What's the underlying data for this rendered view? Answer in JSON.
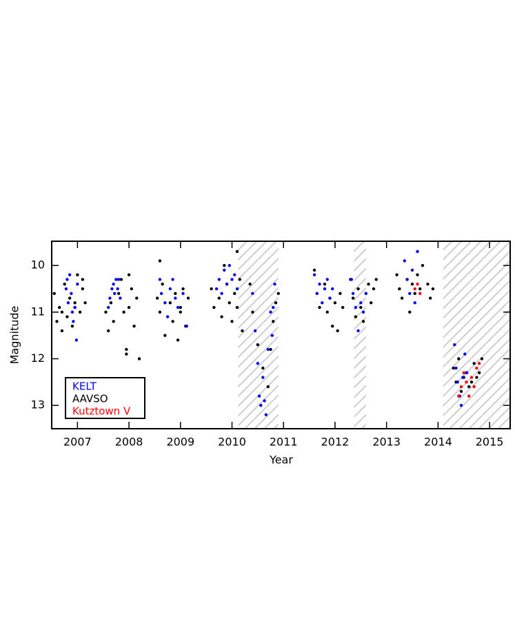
{
  "chart_data": {
    "type": "scatter",
    "xlabel": "Year",
    "ylabel": "Magnitude",
    "xlim": [
      2007.0,
      2015.9
    ],
    "ylim": [
      13.5,
      9.48
    ],
    "xticks": [
      {
        "value": 2007.5,
        "label": "2007"
      },
      {
        "value": 2008.5,
        "label": "2008"
      },
      {
        "value": 2009.5,
        "label": "2009"
      },
      {
        "value": 2010.5,
        "label": "2010"
      },
      {
        "value": 2011.5,
        "label": "2011"
      },
      {
        "value": 2012.5,
        "label": "2012"
      },
      {
        "value": 2013.5,
        "label": "2013"
      },
      {
        "value": 2014.5,
        "label": "2014"
      },
      {
        "value": 2015.5,
        "label": "2015"
      }
    ],
    "yticks": [
      10,
      11,
      12,
      13
    ],
    "shaded_regions": [
      [
        2010.62,
        2011.4
      ],
      [
        2012.87,
        2013.1
      ],
      [
        2014.6,
        2015.9
      ]
    ],
    "legend": "lower left",
    "series": [
      {
        "name": "KELT",
        "color": "#0000ff",
        "x": [
          2007.28,
          2007.3,
          2007.32,
          2007.35,
          2007.38,
          2007.4,
          2007.42,
          2007.45,
          2007.48,
          2007.5,
          2008.1,
          2008.13,
          2008.17,
          2008.2,
          2008.22,
          2008.25,
          2008.28,
          2008.3,
          2008.33,
          2009.1,
          2009.13,
          2009.2,
          2009.25,
          2009.3,
          2009.35,
          2009.4,
          2009.45,
          2009.55,
          2009.62,
          2010.2,
          2010.25,
          2010.3,
          2010.35,
          2010.4,
          2010.45,
          2010.5,
          2010.55,
          2010.6,
          2010.9,
          2010.95,
          2011.0,
          2011.03,
          2011.06,
          2011.1,
          2011.13,
          2011.16,
          2011.2,
          2011.25,
          2011.28,
          2011.3,
          2011.33,
          2012.1,
          2012.15,
          2012.2,
          2012.25,
          2012.3,
          2012.35,
          2012.4,
          2012.45,
          2012.82,
          2012.85,
          2012.9,
          2012.95,
          2013.0,
          2013.05,
          2013.1,
          2013.85,
          2013.9,
          2013.95,
          2014.0,
          2014.05,
          2014.1,
          2014.82,
          2014.85,
          2014.88,
          2014.92,
          2014.95,
          2014.98,
          2015.02,
          2015.06
        ],
        "values": [
          10.5,
          10.3,
          10.8,
          10.2,
          10.6,
          11.0,
          11.2,
          10.9,
          11.6,
          10.4,
          10.9,
          10.7,
          10.5,
          10.4,
          10.6,
          10.3,
          10.5,
          10.3,
          10.7,
          10.3,
          10.6,
          10.8,
          11.1,
          10.5,
          10.3,
          10.7,
          10.9,
          10.6,
          11.3,
          10.5,
          10.3,
          10.6,
          10.1,
          10.4,
          10.0,
          10.3,
          10.2,
          10.5,
          10.6,
          11.4,
          12.1,
          12.8,
          13.0,
          12.4,
          12.9,
          13.2,
          11.8,
          11.0,
          11.5,
          10.9,
          10.4,
          10.2,
          10.6,
          10.4,
          10.8,
          10.5,
          10.3,
          10.7,
          10.5,
          10.3,
          10.6,
          10.9,
          11.4,
          10.8,
          11.0,
          10.6,
          9.9,
          10.3,
          10.6,
          10.1,
          10.8,
          9.7,
          11.7,
          12.2,
          12.5,
          12.8,
          13.0,
          12.4,
          11.9,
          12.3
        ]
      },
      {
        "name": "AAVSO",
        "color": "#000000",
        "x": [
          2007.05,
          2007.1,
          2007.15,
          2007.2,
          2007.25,
          2007.3,
          2007.35,
          2007.4,
          2007.45,
          2007.5,
          2007.55,
          2007.6,
          2007.65,
          2007.2,
          2007.45,
          2007.6,
          2008.05,
          2008.1,
          2008.15,
          2008.2,
          2008.3,
          2008.35,
          2008.4,
          2008.45,
          2008.5,
          2008.55,
          2008.6,
          2008.65,
          2008.7,
          2008.45,
          2008.5,
          2009.05,
          2009.1,
          2009.15,
          2009.2,
          2009.3,
          2009.35,
          2009.4,
          2009.45,
          2009.5,
          2009.55,
          2009.6,
          2009.65,
          2009.1,
          2009.5,
          2010.1,
          2010.15,
          2010.25,
          2010.3,
          2010.4,
          2010.45,
          2010.5,
          2010.55,
          2010.6,
          2010.65,
          2010.7,
          2010.35,
          2010.6,
          2010.85,
          2010.9,
          2011.0,
          2011.1,
          2011.2,
          2011.25,
          2011.3,
          2011.35,
          2011.4,
          2012.1,
          2012.15,
          2012.2,
          2012.3,
          2012.35,
          2012.4,
          2012.45,
          2012.5,
          2012.55,
          2012.6,
          2012.65,
          2012.8,
          2012.85,
          2012.9,
          2012.95,
          2013.0,
          2013.05,
          2013.1,
          2013.15,
          2013.2,
          2013.25,
          2013.3,
          2013.7,
          2013.75,
          2013.8,
          2013.9,
          2013.95,
          2014.0,
          2014.05,
          2014.1,
          2014.15,
          2014.2,
          2014.3,
          2014.35,
          2014.4,
          2014.8,
          2014.85,
          2014.9,
          2014.95,
          2015.0,
          2015.05,
          2015.1,
          2015.15,
          2015.2,
          2015.25,
          2015.3,
          2015.35
        ],
        "values": [
          10.6,
          11.2,
          10.9,
          11.0,
          10.4,
          11.1,
          10.7,
          11.3,
          10.8,
          10.2,
          11.0,
          10.5,
          10.8,
          11.4,
          10.9,
          10.3,
          11.0,
          11.4,
          10.8,
          11.2,
          10.6,
          10.3,
          11.0,
          11.8,
          10.9,
          10.5,
          11.3,
          10.7,
          12.0,
          11.9,
          10.2,
          10.7,
          11.0,
          10.4,
          11.5,
          10.8,
          11.2,
          10.6,
          11.6,
          10.9,
          10.5,
          11.3,
          10.7,
          9.9,
          11.0,
          10.5,
          10.9,
          10.7,
          11.1,
          10.4,
          10.8,
          11.2,
          10.6,
          10.9,
          10.3,
          11.4,
          10.0,
          9.7,
          10.4,
          11.0,
          11.7,
          12.2,
          12.6,
          11.8,
          11.2,
          10.8,
          10.6,
          10.1,
          10.6,
          10.9,
          10.4,
          11.0,
          10.7,
          11.3,
          10.8,
          11.4,
          10.6,
          10.9,
          10.3,
          10.7,
          11.1,
          10.5,
          10.9,
          11.2,
          10.6,
          10.4,
          10.8,
          10.5,
          10.3,
          10.2,
          10.5,
          10.7,
          10.3,
          11.0,
          10.4,
          10.6,
          10.2,
          10.5,
          10.0,
          10.4,
          10.7,
          10.5,
          12.2,
          12.5,
          12.0,
          12.7,
          12.4,
          12.3,
          12.6,
          12.5,
          12.1,
          12.4,
          12.3,
          12.0
        ]
      },
      {
        "name": "Kutztown V",
        "color": "#ff0000",
        "x": [
          2014.05,
          2014.1,
          2014.15,
          2014.9,
          2014.95,
          2015.0,
          2015.05,
          2015.1,
          2015.15,
          2015.2,
          2015.25,
          2015.3
        ],
        "values": [
          10.5,
          10.4,
          10.6,
          12.8,
          12.6,
          12.3,
          12.5,
          12.8,
          12.4,
          12.6,
          12.2,
          12.1
        ]
      }
    ]
  }
}
